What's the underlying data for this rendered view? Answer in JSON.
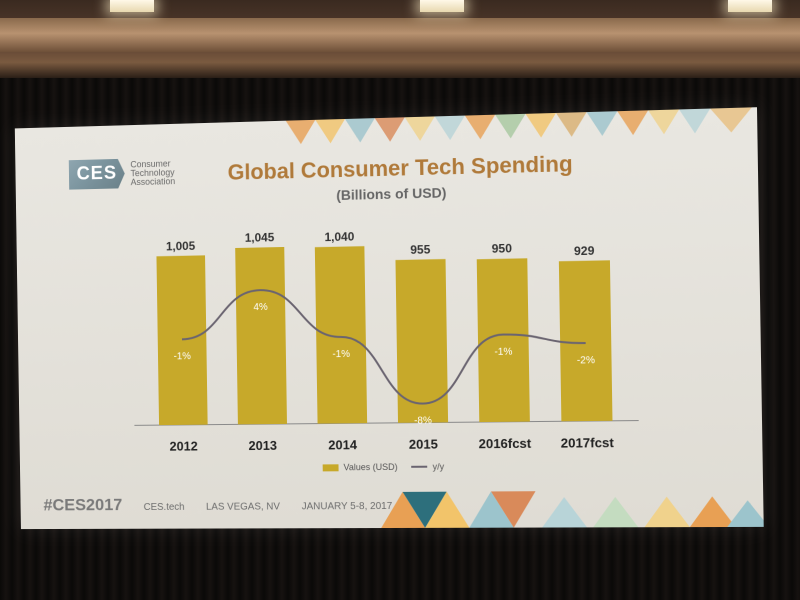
{
  "logo": {
    "mark": "CES",
    "line1": "Consumer",
    "line2": "Technology",
    "line3": "Association"
  },
  "footer": {
    "hashtag": "#CES2017",
    "site": "CES.tech",
    "location": "LAS VEGAS, NV",
    "dates": "JANUARY 5-8, 2017"
  },
  "colors": {
    "bar": "#c7a92a",
    "line": "#6a6470",
    "title": "#b07a3a"
  },
  "chart_data": {
    "type": "bar",
    "title": "Global Consumer Tech Spending",
    "subtitle": "(Billions of USD)",
    "categories": [
      "2012",
      "2013",
      "2014",
      "2015",
      "2016fcst",
      "2017fcst"
    ],
    "series": [
      {
        "name": "Values (USD)",
        "type": "bar",
        "values": [
          1005,
          1045,
          1040,
          955,
          950,
          929
        ],
        "labels": [
          "1,005",
          "1,045",
          "1,040",
          "955",
          "950",
          "929"
        ]
      },
      {
        "name": "y/y",
        "type": "line",
        "values": [
          -1,
          4,
          -1,
          -8,
          -1,
          -2
        ],
        "labels": [
          "-1%",
          "4%",
          "-1%",
          "-8%",
          "-1%",
          "-2%"
        ]
      }
    ],
    "legend_position": "bottom",
    "grid": false
  }
}
